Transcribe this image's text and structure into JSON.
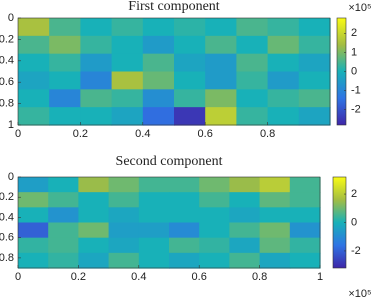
{
  "chart_data": [
    {
      "type": "heatmap",
      "title": "First component",
      "colormap": "parula",
      "xlim": [
        0,
        1
      ],
      "ylim": [
        0,
        1
      ],
      "xticks": [
        0,
        0.2,
        0.4,
        0.6,
        0.8
      ],
      "yticks": [
        0,
        0.2,
        0.4,
        0.6,
        0.8,
        1
      ],
      "clim": [
        -2.8,
        2.8
      ],
      "cticks": [
        2,
        1,
        0,
        -1,
        -2
      ],
      "colorbar_exponent": "×10⁵",
      "z": [
        [
          1.5,
          0.5,
          0,
          0.3,
          0,
          0.2,
          0,
          0.5,
          0.3,
          0
        ],
        [
          0.5,
          1,
          0.3,
          0,
          -0.5,
          0,
          0.5,
          0,
          0.8,
          0.3
        ],
        [
          0,
          0.3,
          -0.5,
          0,
          0.5,
          -0.3,
          -0.5,
          0.5,
          0,
          -0.3
        ],
        [
          -0.3,
          0,
          -1,
          1.5,
          0.8,
          0,
          -0.5,
          0.3,
          -0.5,
          0
        ],
        [
          0,
          -1,
          0.5,
          0.3,
          -0.8,
          0.3,
          1,
          0,
          0.3,
          0.5
        ],
        [
          0.3,
          0,
          0,
          -0.3,
          -1.5,
          -2.5,
          1.8,
          0.3,
          0,
          -0.3
        ]
      ]
    },
    {
      "type": "heatmap",
      "title": "Second component",
      "colormap": "parula",
      "xlim": [
        0,
        1
      ],
      "ylim": [
        0,
        0.9
      ],
      "xticks": [
        0,
        0.2,
        0.4,
        0.6,
        0.8,
        1
      ],
      "yticks": [
        0,
        0.2,
        0.4,
        0.6,
        0.8
      ],
      "clim": [
        -3.2,
        3.2
      ],
      "cticks": [
        2,
        0,
        -2
      ],
      "colorbar_exponent": "×10⁵",
      "z": [
        [
          -0.5,
          0,
          1.5,
          1,
          0.5,
          0.5,
          1,
          1.5,
          2,
          0.5
        ],
        [
          1,
          0.5,
          0,
          0.5,
          0,
          0,
          0.5,
          0,
          0.8,
          0.5
        ],
        [
          0,
          -0.8,
          0,
          -0.3,
          0,
          0,
          0,
          -0.3,
          0,
          0
        ],
        [
          -2,
          0.5,
          1,
          -0.5,
          -0.5,
          -1,
          0,
          0.5,
          1,
          -0.8
        ],
        [
          0.3,
          0.5,
          0,
          -0.3,
          0,
          0.5,
          0.3,
          -0.3,
          0.8,
          0.3
        ],
        [
          0,
          0.3,
          -0.3,
          0.5,
          0,
          -0.3,
          0,
          0.5,
          -0.3,
          0
        ]
      ]
    }
  ]
}
